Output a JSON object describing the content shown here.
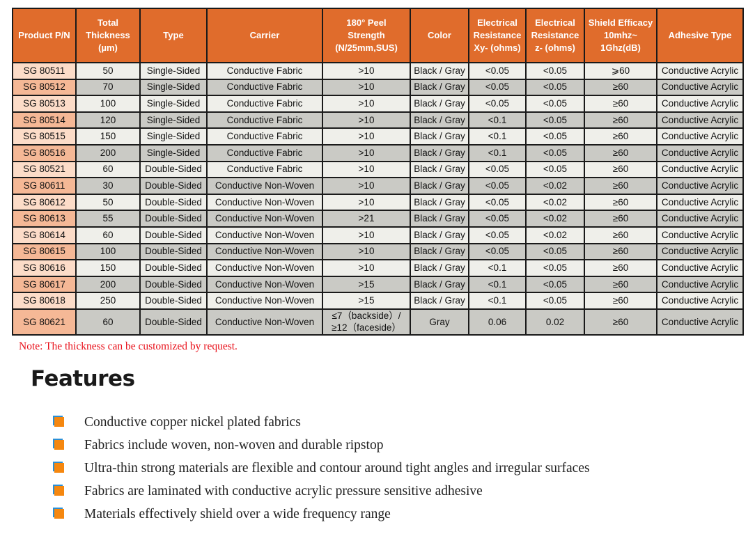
{
  "table": {
    "headers": [
      "Product P/N",
      "Total Thickness (µm)",
      "Type",
      "Carrier",
      "180° Peel Strength (N/25mm,SUS)",
      "Color",
      "Electrical Resistance Xy- (ohms)",
      "Electrical Resistance z- (ohms)",
      "Shield Efficacy 10mhz~ 1Ghz(dB)",
      "Adhesive Type"
    ],
    "header_lines": [
      [
        "Product P/N"
      ],
      [
        "Total",
        "Thickness",
        "(µm)"
      ],
      [
        "Type"
      ],
      [
        "Carrier"
      ],
      [
        "180° Peel",
        "Strength",
        "(N/25mm,SUS)"
      ],
      [
        "Color"
      ],
      [
        "Electrical",
        "Resistance",
        "Xy- (ohms)"
      ],
      [
        "Electrical",
        "Resistance",
        "z- (ohms)"
      ],
      [
        "Shield Efficacy",
        "10mhz~",
        "1Ghz(dB)"
      ],
      [
        "Adhesive Type"
      ]
    ],
    "rows": [
      [
        "SG 80511",
        "50",
        "Single-Sided",
        "Conductive Fabric",
        ">10",
        "Black / Gray",
        "<0.05",
        "<0.05",
        "⩾60",
        "Conductive Acrylic"
      ],
      [
        "SG 80512",
        "70",
        "Single-Sided",
        "Conductive Fabric",
        ">10",
        "Black / Gray",
        "<0.05",
        "<0.05",
        "≥60",
        "Conductive Acrylic"
      ],
      [
        "SG 80513",
        "100",
        "Single-Sided",
        "Conductive Fabric",
        ">10",
        "Black / Gray",
        "<0.05",
        "<0.05",
        "≥60",
        "Conductive Acrylic"
      ],
      [
        "SG 80514",
        "120",
        "Single-Sided",
        "Conductive Fabric",
        ">10",
        "Black / Gray",
        "<0.1",
        "<0.05",
        "≥60",
        "Conductive Acrylic"
      ],
      [
        "SG 80515",
        "150",
        "Single-Sided",
        "Conductive Fabric",
        ">10",
        "Black / Gray",
        "<0.1",
        "<0.05",
        "≥60",
        "Conductive Acrylic"
      ],
      [
        "SG 80516",
        "200",
        "Single-Sided",
        "Conductive Fabric",
        ">10",
        "Black / Gray",
        "<0.1",
        "<0.05",
        "≥60",
        "Conductive Acrylic"
      ],
      [
        "SG 80521",
        "60",
        "Double-Sided",
        "Conductive Fabric",
        ">10",
        "Black / Gray",
        "<0.05",
        "<0.05",
        "≥60",
        "Conductive Acrylic"
      ],
      [
        "SG 80611",
        "30",
        "Double-Sided",
        "Conductive Non-Woven",
        ">10",
        "Black / Gray",
        "<0.05",
        "<0.02",
        "≥60",
        "Conductive Acrylic"
      ],
      [
        "SG 80612",
        "50",
        "Double-Sided",
        "Conductive Non-Woven",
        ">10",
        "Black / Gray",
        "<0.05",
        "<0.02",
        "≥60",
        "Conductive Acrylic"
      ],
      [
        "SG 80613",
        "55",
        "Double-Sided",
        "Conductive Non-Woven",
        ">21",
        "Black / Gray",
        "<0.05",
        "<0.02",
        "≥60",
        "Conductive Acrylic"
      ],
      [
        "SG 80614",
        "60",
        "Double-Sided",
        "Conductive Non-Woven",
        ">10",
        "Black / Gray",
        "<0.05",
        "<0.02",
        "≥60",
        "Conductive Acrylic"
      ],
      [
        "SG 80615",
        "100",
        "Double-Sided",
        "Conductive Non-Woven",
        ">10",
        "Black / Gray",
        "<0.05",
        "<0.05",
        "≥60",
        "Conductive Acrylic"
      ],
      [
        "SG 80616",
        "150",
        "Double-Sided",
        "Conductive Non-Woven",
        ">10",
        "Black / Gray",
        "<0.1",
        "<0.05",
        "≥60",
        "Conductive Acrylic"
      ],
      [
        "SG 80617",
        "200",
        "Double-Sided",
        "Conductive Non-Woven",
        ">15",
        "Black / Gray",
        "<0.1",
        "<0.05",
        "≥60",
        "Conductive Acrylic"
      ],
      [
        "SG 80618",
        "250",
        "Double-Sided",
        "Conductive Non-Woven",
        ">15",
        "Black / Gray",
        "<0.1",
        "<0.05",
        "≥60",
        "Conductive Acrylic"
      ],
      [
        "SG 80621",
        "60",
        "Double-Sided",
        "Conductive Non-Woven",
        "≤7（backside）/ ≥12（faceside）",
        "Gray",
        "0.06",
        "0.02",
        "≥60",
        "Conductive Acrylic"
      ]
    ]
  },
  "note": "Note: The thickness can be customized by request.",
  "features": {
    "title": "Features",
    "items": [
      "Conductive copper nickel plated fabrics",
      "Fabrics include woven, non-woven and durable ripstop",
      "Ultra-thin strong materials are flexible and contour around tight angles and irregular surfaces",
      "Fabrics are laminated with conductive acrylic pressure sensitive adhesive",
      "Materials effectively shield over a wide frequency range"
    ]
  },
  "colors": {
    "header": "#e06c2c",
    "note": "#e8101a",
    "bullet": "#f5870f",
    "bullet_shadow": "#2a8fd6"
  }
}
